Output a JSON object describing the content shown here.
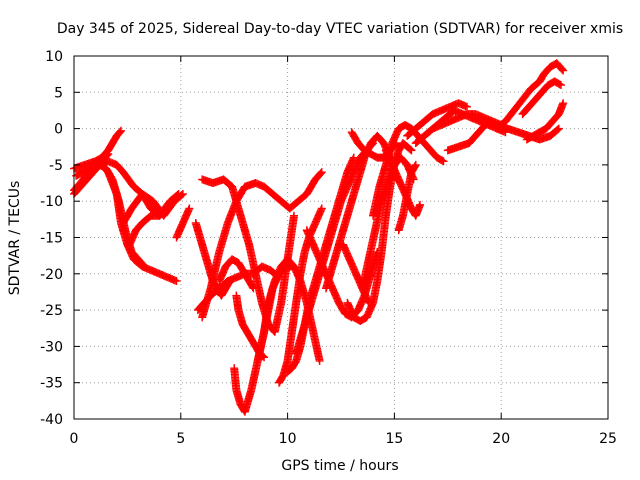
{
  "chart_data": {
    "type": "scatter",
    "title": "Day 345 of 2025, Sidereal Day-to-day VTEC variation (SDTVAR) for receiver xmis",
    "xlabel": "GPS time / hours",
    "ylabel": "SDTVAR / TECUs",
    "xlim": [
      0,
      25
    ],
    "ylim": [
      -40,
      10
    ],
    "xticks": [
      "0",
      "5",
      "10",
      "15",
      "20",
      "25"
    ],
    "yticks": [
      "10",
      "5",
      "0",
      "-5",
      "-10",
      "-15",
      "-20",
      "-25",
      "-30",
      "-35",
      "-40"
    ],
    "grid": true,
    "marker": "+",
    "marker_color": "#ff0000",
    "tracks": [
      {
        "x": [
          0.0,
          0.5,
          1.0,
          1.3,
          1.6,
          1.8,
          2.0,
          2.2
        ],
        "y": [
          -5.5,
          -5,
          -4.5,
          -4,
          -3,
          -2,
          -1,
          -0.3
        ]
      },
      {
        "x": [
          0.0,
          0.3,
          0.6,
          0.9,
          1.2,
          1.6,
          2.0,
          2.3,
          2.8,
          3.2,
          3.6,
          4.0,
          4.5,
          4.9
        ],
        "y": [
          -9,
          -8,
          -7,
          -6,
          -5,
          -4.5,
          -5,
          -6,
          -8,
          -9,
          -11,
          -12,
          -10,
          -9
        ]
      },
      {
        "x": [
          0.0,
          0.3,
          0.7,
          1.0,
          1.3,
          1.6
        ],
        "y": [
          -8.5,
          -7.5,
          -6,
          -5,
          -4.5,
          -3.5
        ]
      },
      {
        "x": [
          0.1,
          0.4,
          0.8,
          1.2,
          1.5,
          1.8,
          2.1,
          2.4,
          2.7,
          3.0,
          3.3
        ],
        "y": [
          -6.5,
          -6,
          -5.5,
          -5,
          -5.5,
          -7,
          -10,
          -14,
          -17,
          -18,
          -19
        ]
      },
      {
        "x": [
          1.2,
          1.6,
          2.0,
          2.2,
          2.5,
          2.8,
          3.2,
          3.6,
          4.0,
          4.4,
          4.8
        ],
        "y": [
          -4.5,
          -6,
          -9,
          -13,
          -16,
          -18,
          -19,
          -19.5,
          -20,
          -20.5,
          -21
        ]
      },
      {
        "x": [
          2.3,
          2.7,
          3.2,
          3.7,
          4.2,
          4.7,
          5.1
        ],
        "y": [
          -13,
          -11,
          -9,
          -10,
          -12,
          -10,
          -9
        ]
      },
      {
        "x": [
          2.6,
          2.9,
          3.2,
          3.6,
          4.0,
          4.4
        ],
        "y": [
          -16,
          -14,
          -13,
          -12,
          -12,
          -11
        ]
      },
      {
        "x": [
          4.8,
          5.1,
          5.4
        ],
        "y": [
          -15,
          -13,
          -11
        ]
      },
      {
        "x": [
          5.7,
          5.9,
          6.1,
          6.3,
          6.5,
          6.7,
          6.9,
          7.1,
          7.3
        ],
        "y": [
          -13,
          -15,
          -17,
          -19,
          -21,
          -22,
          -23,
          -22,
          -21
        ]
      },
      {
        "x": [
          5.8,
          6.1,
          6.4,
          6.8,
          7.2,
          7.6,
          8.0,
          8.4,
          8.8,
          9.2,
          9.6
        ],
        "y": [
          -25,
          -24,
          -23,
          -22,
          -21,
          -20.5,
          -20,
          -20,
          -19,
          -19.5,
          -20.5
        ]
      },
      {
        "x": [
          6.0,
          6.5,
          7.0,
          7.4,
          7.6,
          7.9,
          8.2,
          8.5,
          8.8,
          9.1,
          9.4,
          9.7,
          10.0,
          10.3
        ],
        "y": [
          -7,
          -7.5,
          -7,
          -8,
          -10,
          -13,
          -16,
          -20,
          -24,
          -27,
          -28,
          -24,
          -18,
          -12
        ]
      },
      {
        "x": [
          6.0,
          6.4,
          6.8,
          7.2,
          7.6,
          8.0,
          8.5,
          8.9,
          9.3,
          9.7,
          10.1,
          10.5,
          10.9,
          11.3,
          11.6
        ],
        "y": [
          -26,
          -22,
          -17,
          -13,
          -10,
          -8,
          -7.5,
          -8,
          -9,
          -10,
          -11,
          -10,
          -9,
          -7,
          -6
        ]
      },
      {
        "x": [
          6.8,
          7.1,
          7.4,
          7.7,
          8.0,
          8.4
        ],
        "y": [
          -21,
          -19,
          -18,
          -18.5,
          -20,
          -22
        ]
      },
      {
        "x": [
          7.5,
          7.6,
          7.8,
          8.0,
          8.3,
          8.6,
          8.9,
          9.1,
          9.3,
          9.6,
          9.9,
          10.2
        ],
        "y": [
          -33,
          -36,
          -38,
          -39,
          -36,
          -32,
          -28,
          -25,
          -22,
          -20,
          -19,
          -19
        ]
      },
      {
        "x": [
          7.6,
          7.7,
          7.9,
          8.1,
          8.3,
          8.5,
          8.7,
          8.9
        ],
        "y": [
          -23,
          -25,
          -27,
          -28,
          -29,
          -30,
          -31,
          -31.5
        ]
      },
      {
        "x": [
          8.6,
          8.9,
          9.1,
          9.4,
          9.7,
          10.0,
          10.3,
          10.6,
          10.9,
          11.2,
          11.5
        ],
        "y": [
          -32,
          -28,
          -24,
          -21,
          -19,
          -18,
          -19,
          -21,
          -24,
          -28,
          -32
        ]
      },
      {
        "x": [
          9.6,
          9.8,
          10.0,
          10.2,
          10.4,
          10.6,
          10.8,
          11.0,
          11.3,
          11.6
        ],
        "y": [
          -35,
          -34,
          -32,
          -28,
          -24,
          -20,
          -17,
          -15,
          -13,
          -11
        ]
      },
      {
        "x": [
          10.0,
          10.2,
          10.4,
          10.6,
          10.8,
          11.0,
          11.3,
          11.6,
          11.9,
          12.2,
          12.5,
          12.8,
          13.1
        ],
        "y": [
          -33.5,
          -33,
          -32,
          -30,
          -27,
          -24,
          -21,
          -18,
          -15,
          -12,
          -9,
          -6,
          -4
        ]
      },
      {
        "x": [
          10.4,
          10.7,
          11.0,
          11.3,
          11.6,
          11.9,
          12.2,
          12.5,
          12.8,
          13.1,
          13.4,
          13.7,
          14.0
        ],
        "y": [
          -31,
          -28,
          -25,
          -22,
          -19,
          -16,
          -13,
          -10,
          -8,
          -6,
          -4,
          -3,
          -2
        ]
      },
      {
        "x": [
          10.9,
          11.2,
          11.5,
          11.8,
          12.1,
          12.4,
          12.7,
          13.0,
          13.3,
          13.6,
          13.9,
          14.2
        ],
        "y": [
          -14,
          -16,
          -18,
          -20,
          -22,
          -24,
          -25.5,
          -26,
          -25,
          -23,
          -20,
          -17
        ]
      },
      {
        "x": [
          11.8,
          12.1,
          12.4,
          12.7,
          13.0,
          13.3,
          13.6,
          13.9,
          14.2,
          14.5,
          14.8,
          15.1
        ],
        "y": [
          -22,
          -19,
          -16,
          -13,
          -10,
          -7,
          -4,
          -2,
          -1,
          -2,
          -4,
          -7
        ]
      },
      {
        "x": [
          12.6,
          12.9,
          13.2,
          13.5,
          13.8
        ],
        "y": [
          -16,
          -18,
          -20,
          -22,
          -24
        ]
      },
      {
        "x": [
          12.8,
          13.1,
          13.4,
          13.7,
          14.0,
          14.2,
          14.4,
          14.6,
          14.8,
          15.0,
          15.2,
          15.4,
          15.6,
          15.8
        ],
        "y": [
          -24,
          -26,
          -26.5,
          -26,
          -24,
          -21,
          -17,
          -12,
          -8,
          -5,
          -3,
          -2,
          -2.5,
          -3
        ]
      },
      {
        "x": [
          13.0,
          13.3,
          13.6,
          13.9,
          14.2,
          14.5,
          14.8,
          15.1
        ],
        "y": [
          -0.5,
          -2,
          -3,
          -3.5,
          -4,
          -4,
          -3,
          -2
        ]
      },
      {
        "x": [
          13.5,
          13.8,
          14.1,
          14.4,
          14.7,
          15.0,
          15.3,
          15.6,
          15.9
        ],
        "y": [
          -22,
          -18,
          -14,
          -10,
          -7,
          -5,
          -4,
          -5,
          -7
        ]
      },
      {
        "x": [
          14.0,
          14.3,
          14.6,
          14.9,
          15.2,
          15.5,
          15.8,
          16.1,
          16.4,
          16.7,
          17.0,
          17.3
        ],
        "y": [
          -12,
          -8,
          -5,
          -2,
          0,
          0.5,
          0,
          -1,
          -2,
          -3,
          -4,
          -4.5
        ]
      },
      {
        "x": [
          14.6,
          14.9,
          15.2,
          15.5,
          15.8,
          16.0,
          16.2
        ],
        "y": [
          -3,
          -5,
          -7,
          -9,
          -11,
          -12,
          -10.5
        ]
      },
      {
        "x": [
          15.2,
          15.4,
          15.6,
          15.8,
          16.0
        ],
        "y": [
          -14,
          -12,
          -9,
          -6,
          -5
        ]
      },
      {
        "x": [
          15.6,
          16.0,
          16.4,
          16.8,
          17.2,
          17.6,
          18.0,
          18.4
        ],
        "y": [
          -1,
          0,
          1,
          2,
          2.5,
          3,
          3.5,
          3
        ]
      },
      {
        "x": [
          16.0,
          16.4,
          16.8,
          17.2,
          17.6,
          18.0,
          18.4,
          18.8,
          19.2,
          19.6,
          20.0
        ],
        "y": [
          -2,
          -1,
          0,
          0.5,
          1,
          1.5,
          2,
          2,
          1.5,
          1,
          0.5
        ]
      },
      {
        "x": [
          16.6,
          17.0,
          17.4,
          17.8,
          18.2,
          18.6,
          19.0,
          19.4,
          19.8,
          20.2
        ],
        "y": [
          -0.5,
          0.5,
          1.5,
          2.5,
          2,
          1.5,
          1,
          0.5,
          0,
          -0.5
        ]
      },
      {
        "x": [
          17.5,
          18.0,
          18.5,
          18.8,
          19.1,
          19.4,
          19.8,
          20.3,
          20.8,
          21.3,
          21.8,
          22.3,
          22.7
        ],
        "y": [
          -3,
          -2.5,
          -2,
          -1,
          0,
          1,
          0.5,
          0,
          -0.5,
          -1,
          -1.5,
          -1,
          0
        ]
      },
      {
        "x": [
          19.8,
          20.2,
          20.6,
          21.0,
          21.4,
          21.8,
          22.0,
          22.3,
          22.6,
          22.9
        ],
        "y": [
          0,
          1,
          2.5,
          4,
          5.5,
          6.5,
          7.5,
          8.5,
          9,
          8
        ]
      },
      {
        "x": [
          21.0,
          21.3,
          21.6,
          21.9,
          22.2,
          22.5,
          22.8
        ],
        "y": [
          2,
          3,
          4,
          5,
          6,
          6.5,
          6
        ]
      },
      {
        "x": [
          21.2,
          21.5,
          21.8,
          22.1,
          22.4,
          22.7,
          22.9
        ],
        "y": [
          -1.5,
          -1,
          -0.5,
          0,
          1,
          2,
          3.5
        ]
      }
    ]
  }
}
